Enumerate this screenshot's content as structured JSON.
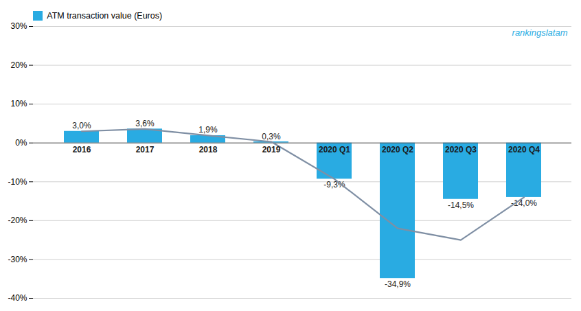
{
  "chart_data": {
    "type": "bar",
    "categories": [
      "2016",
      "2017",
      "2018",
      "2019",
      "2020 Q1",
      "2020 Q2",
      "2020 Q3",
      "2020 Q4"
    ],
    "series": [
      {
        "name": "ATM transaction value (Euros)",
        "type": "bar",
        "color": "#29ABE2",
        "values": [
          3.0,
          3.6,
          1.9,
          0.3,
          -9.3,
          -34.9,
          -14.5,
          -14.0
        ],
        "value_labels": [
          "3,0%",
          "3,6%",
          "1,9%",
          "0,3%",
          "-9,3%",
          "-34,9%",
          "-14,5%",
          "-14,0%"
        ]
      },
      {
        "type": "line",
        "color": "#7F8FA4",
        "values": [
          3.0,
          3.6,
          1.9,
          0.3,
          -9.3,
          -22.0,
          -25.0,
          -14.0
        ]
      }
    ],
    "ylim": [
      -40,
      30
    ],
    "yticks": [
      {
        "value": -40,
        "label": "-40%"
      },
      {
        "value": -30,
        "label": "-30%"
      },
      {
        "value": -20,
        "label": "-20%"
      },
      {
        "value": -10,
        "label": "-10%"
      },
      {
        "value": 0,
        "label": "0%"
      },
      {
        "value": 10,
        "label": "10%"
      },
      {
        "value": 20,
        "label": "20%"
      },
      {
        "value": 30,
        "label": "30%"
      }
    ],
    "grid": true,
    "legend": "upper left",
    "data_labels": true,
    "annotations": [
      {
        "text": "rankingslatam",
        "color": "#29ABE2"
      }
    ]
  }
}
